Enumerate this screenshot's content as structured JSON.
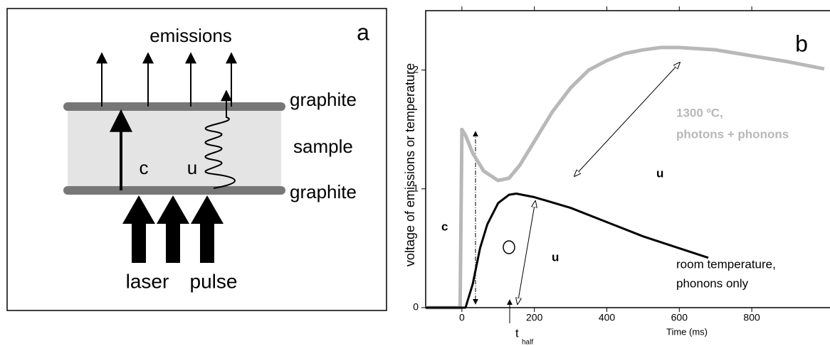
{
  "diagram": {
    "emissions": "emissions",
    "panel": "a",
    "graphite_top": "graphite",
    "sample": "sample",
    "graphite_bottom": "graphite",
    "c": "c",
    "u": "u",
    "laser": "laser",
    "pulse": "pulse"
  },
  "chart_data": {
    "type": "line",
    "panel": "b",
    "x_label": "Time (ms)",
    "y_label": "voltage of emissions or temperature",
    "xlim": [
      -100,
      1010
    ],
    "xticks": [
      0,
      200,
      400,
      600,
      800
    ],
    "ylim": [
      0,
      2.5
    ],
    "yticks": [
      0,
      1,
      2
    ],
    "series": [
      {
        "name": "1300 ºC, photons + phonons",
        "color": "#b8b8b8",
        "x": [
          -100,
          -5,
          0,
          10,
          30,
          60,
          100,
          130,
          160,
          200,
          250,
          300,
          350,
          400,
          450,
          500,
          550,
          600,
          700,
          800,
          900,
          1000
        ],
        "values": [
          0,
          0,
          1.5,
          1.45,
          1.3,
          1.15,
          1.07,
          1.09,
          1.2,
          1.4,
          1.65,
          1.85,
          2.0,
          2.08,
          2.14,
          2.17,
          2.19,
          2.19,
          2.17,
          2.12,
          2.07,
          2.01
        ]
      },
      {
        "name": "room temperature, phonons only",
        "color": "#000000",
        "x": [
          -100,
          10,
          30,
          50,
          70,
          100,
          130,
          150,
          200,
          300,
          400,
          500,
          600,
          680
        ],
        "values": [
          0,
          0,
          0.2,
          0.5,
          0.7,
          0.88,
          0.95,
          0.96,
          0.93,
          0.84,
          0.72,
          0.6,
          0.5,
          0.42
        ]
      }
    ],
    "annotations": {
      "gray_1": "1300 ºC,",
      "gray_2": "photons + phonons",
      "u_upper": "u",
      "c": "c",
      "u_lower": "u",
      "room_1": "room temperature,",
      "room_2": "phonons only",
      "t": "t",
      "t_sub": "half"
    }
  }
}
